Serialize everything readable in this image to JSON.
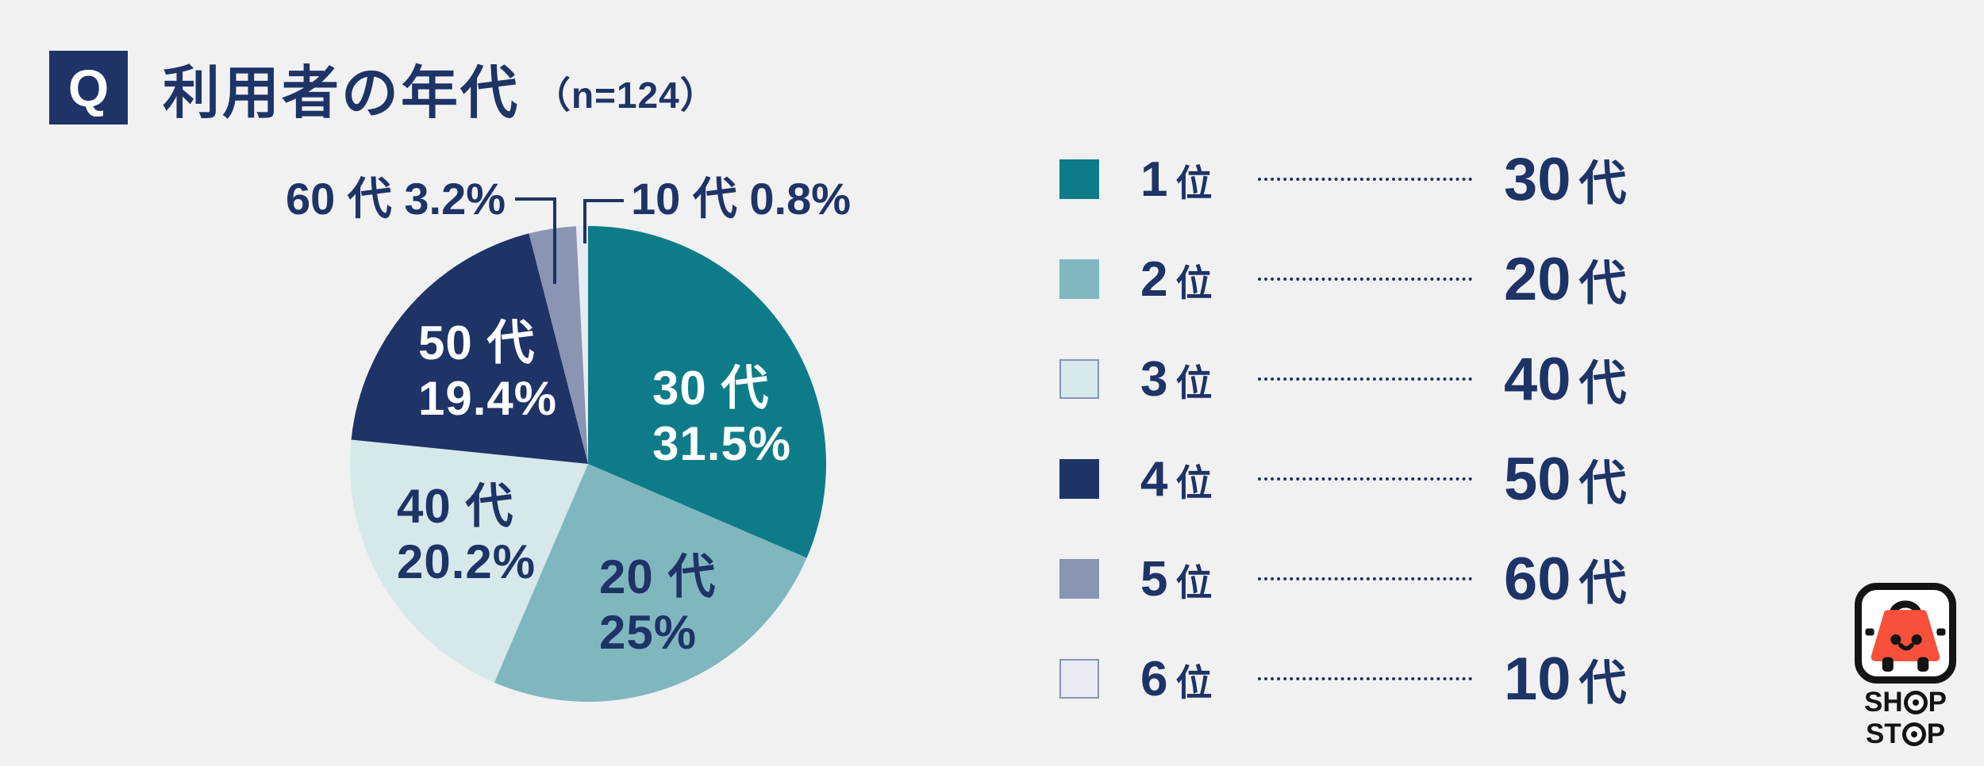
{
  "header": {
    "q_mark": "Q",
    "title": "利用者の年代",
    "sample": "（n=124）"
  },
  "colors": {
    "background": "#f1f1f2",
    "navy": "#1e3366",
    "teal": "#0e7c88",
    "seafoam": "#80b7bf",
    "pale_blue": "#d6e8ea",
    "slate": "#8a94b3",
    "near_white": "#e9ebf2",
    "white": "#ffffff",
    "logo_orange": "#f8503a",
    "logo_black": "#141414"
  },
  "chart_data": {
    "type": "pie",
    "title": "利用者の年代",
    "sample_size": 124,
    "unit": "%",
    "start_angle": "12 o'clock",
    "direction": "clockwise",
    "legend_position": "right",
    "categories": [
      "30代",
      "20代",
      "40代",
      "50代",
      "60代",
      "10代"
    ],
    "values": [
      31.5,
      25,
      20.2,
      19.4,
      3.2,
      0.8
    ],
    "slices": [
      {
        "label": "30代",
        "value": 31.5,
        "rank": 1,
        "color": "#0e7c88",
        "text_color": "#ffffff",
        "line1": "30 代",
        "line2": "31.5%"
      },
      {
        "label": "20代",
        "value": 25,
        "rank": 2,
        "color": "#80b7bf",
        "text_color": "#1e3366",
        "line1": "20 代",
        "line2": "25%"
      },
      {
        "label": "40代",
        "value": 20.2,
        "rank": 3,
        "color": "#d6e8ea",
        "text_color": "#1e3366",
        "line1": "40 代",
        "line2": "20.2%"
      },
      {
        "label": "50代",
        "value": 19.4,
        "rank": 4,
        "color": "#1e3366",
        "text_color": "#ffffff",
        "line1": "50 代",
        "line2": "19.4%"
      },
      {
        "label": "60代",
        "value": 3.2,
        "rank": 5,
        "color": "#8a94b3",
        "callout": "60 代 3.2%"
      },
      {
        "label": "10代",
        "value": 0.8,
        "rank": 6,
        "color": "#e9ebf2",
        "callout": "10 代 0.8%"
      }
    ]
  },
  "legend": {
    "rows": [
      {
        "rank": "1",
        "rank_unit": "位",
        "age": "30",
        "age_unit": "代",
        "color": "#0e7c88"
      },
      {
        "rank": "2",
        "rank_unit": "位",
        "age": "20",
        "age_unit": "代",
        "color": "#80b7bf"
      },
      {
        "rank": "3",
        "rank_unit": "位",
        "age": "40",
        "age_unit": "代",
        "color": "#d6e8ea",
        "bordered": true
      },
      {
        "rank": "4",
        "rank_unit": "位",
        "age": "50",
        "age_unit": "代",
        "color": "#1e3366"
      },
      {
        "rank": "5",
        "rank_unit": "位",
        "age": "60",
        "age_unit": "代",
        "color": "#8a94b3"
      },
      {
        "rank": "6",
        "rank_unit": "位",
        "age": "10",
        "age_unit": "代",
        "color": "#e9ebf2",
        "bordered": true
      }
    ]
  },
  "logo": {
    "line1": "SHOP",
    "line2": "STOP"
  }
}
